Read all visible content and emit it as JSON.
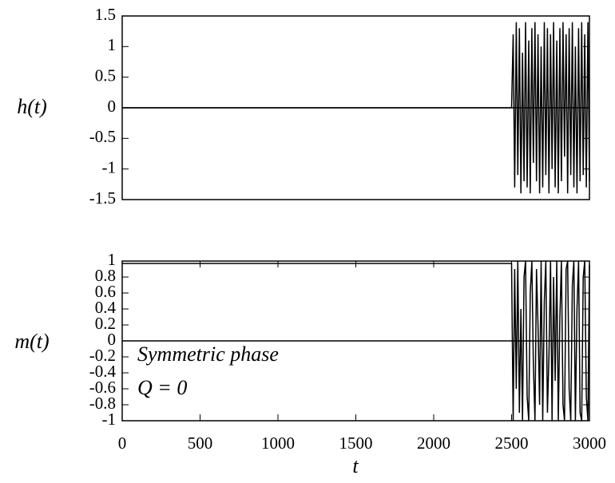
{
  "chart_data": [
    {
      "type": "line",
      "ylabel": "h(t)",
      "xlim": [
        0,
        3000
      ],
      "ylim": [
        -1.5,
        1.5
      ],
      "yticks": [
        -1.5,
        -1,
        -0.5,
        0,
        0.5,
        1,
        1.5
      ],
      "zeroaxis": true,
      "color": "#000000",
      "x": [
        0,
        2500,
        2510,
        2520,
        2530,
        2540,
        2550,
        2560,
        2570,
        2580,
        2590,
        2600,
        2610,
        2620,
        2630,
        2640,
        2650,
        2660,
        2670,
        2680,
        2690,
        2700,
        2710,
        2720,
        2730,
        2740,
        2750,
        2760,
        2770,
        2780,
        2790,
        2800,
        2810,
        2820,
        2830,
        2840,
        2850,
        2860,
        2870,
        2880,
        2890,
        2900,
        2910,
        2920,
        2930,
        2940,
        2950,
        2960,
        2970,
        2980,
        2990,
        3000
      ],
      "values": [
        0,
        0,
        1.2,
        -1.3,
        1.4,
        -1.1,
        1.3,
        -1.4,
        0.9,
        -1.2,
        1.4,
        -1.3,
        1.1,
        -1.4,
        1.3,
        -0.9,
        1.4,
        -1.2,
        1.2,
        -1.4,
        1.0,
        -1.3,
        1.4,
        -1.1,
        1.3,
        -1.4,
        1.2,
        -1.0,
        1.4,
        -1.3,
        1.1,
        -1.4,
        1.3,
        -1.2,
        1.4,
        -0.8,
        1.2,
        -1.4,
        1.3,
        -1.1,
        1.4,
        -1.3,
        1.0,
        -1.4,
        1.3,
        -1.2,
        1.4,
        -1.1,
        1.2,
        -1.3,
        1.4,
        -1.2
      ]
    },
    {
      "type": "line",
      "ylabel": "m(t)",
      "xlabel": "t",
      "xlim": [
        0,
        3000
      ],
      "ylim": [
        -1,
        1
      ],
      "xticks": [
        0,
        500,
        1000,
        1500,
        2000,
        2500,
        3000
      ],
      "yticks": [
        -1,
        -0.8,
        -0.6,
        -0.4,
        -0.2,
        0,
        0.2,
        0.4,
        0.6,
        0.8,
        1
      ],
      "zeroaxis": true,
      "color": "#000000",
      "annotations": [
        "Symmetric phase",
        "Q = 0"
      ],
      "x": [
        0,
        2500,
        2510,
        2520,
        2530,
        2540,
        2550,
        2560,
        2570,
        2580,
        2590,
        2600,
        2610,
        2620,
        2630,
        2640,
        2650,
        2660,
        2670,
        2680,
        2690,
        2700,
        2710,
        2720,
        2730,
        2740,
        2750,
        2760,
        2770,
        2780,
        2790,
        2800,
        2810,
        2820,
        2830,
        2840,
        2850,
        2860,
        2870,
        2880,
        2890,
        2900,
        2910,
        2920,
        2930,
        2940,
        2950,
        2960,
        2970,
        2980,
        2990,
        3000
      ],
      "values": [
        0.97,
        0.97,
        -1,
        0.9,
        -0.6,
        1,
        -0.9,
        0.4,
        -1,
        0.8,
        1,
        -0.7,
        -1,
        0.6,
        1,
        -0.3,
        -1,
        0.9,
        0.2,
        -0.8,
        1,
        -1,
        0.5,
        1,
        -0.9,
        -0.2,
        1,
        -1,
        0.8,
        -0.5,
        1,
        -1,
        0.3,
        1,
        -0.8,
        -1,
        0.9,
        1,
        -0.6,
        -1,
        0.7,
        1,
        -1,
        0.4,
        1,
        -0.9,
        -1,
        0.8,
        1,
        -0.7,
        -1,
        0.95
      ]
    }
  ]
}
